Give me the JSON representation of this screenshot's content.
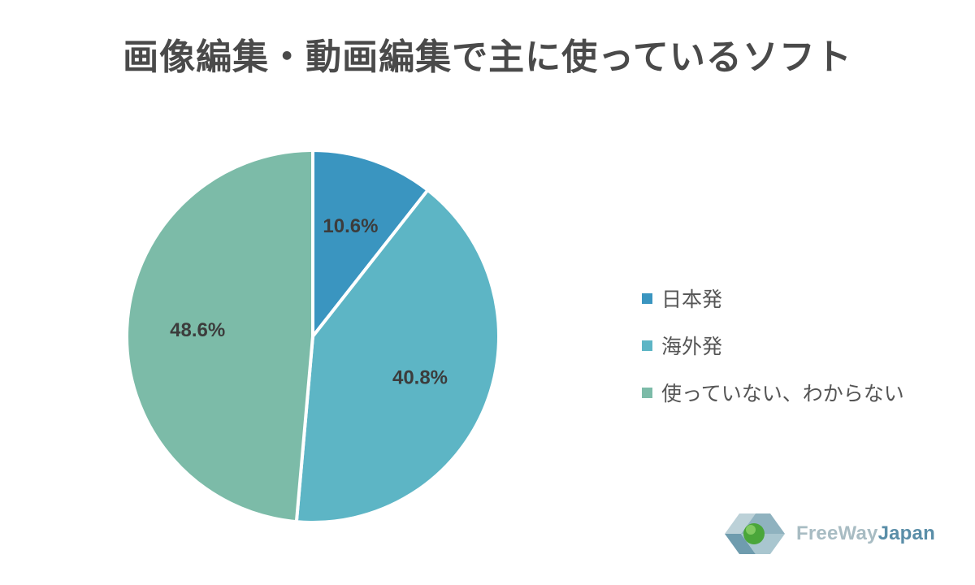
{
  "chart_data": {
    "type": "pie",
    "title": "画像編集・動画編集で主に使っているソフト",
    "categories": [
      "日本発",
      "海外発",
      "使っていない、わからない"
    ],
    "values": [
      10.6,
      40.8,
      48.6
    ],
    "value_labels": [
      "10.6%",
      "40.8%",
      "48.6%"
    ],
    "colors": [
      "#3a95c0",
      "#5db5c5",
      "#7cbba8"
    ],
    "start_angle_deg": 0,
    "direction": "clockwise",
    "legend_position": "right"
  },
  "logo": {
    "text_part1": "FreeWay",
    "text_part2": "Japan",
    "color_part1": "#a8bcc3",
    "color_part2": "#5a8ea8"
  }
}
